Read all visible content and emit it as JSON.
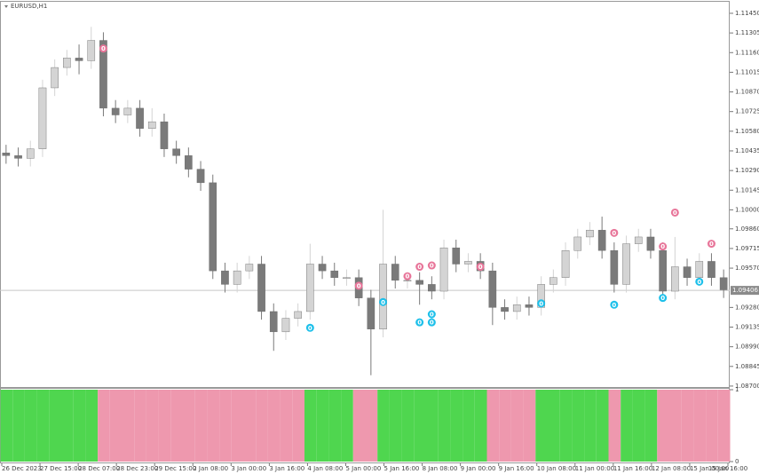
{
  "chart_data": {
    "type": "candlestick",
    "title": "EURUSD,H1",
    "candles": [
      [
        1.1042,
        1.1048,
        1.1034,
        1.104
      ],
      [
        1.104,
        1.1046,
        1.1032,
        1.1038
      ],
      [
        1.1038,
        1.1051,
        1.1032,
        1.1045
      ],
      [
        1.1045,
        1.1096,
        1.1039,
        1.109
      ],
      [
        1.109,
        1.1111,
        1.1084,
        1.1105
      ],
      [
        1.1105,
        1.1118,
        1.1099,
        1.1112
      ],
      [
        1.1112,
        1.1122,
        1.11,
        1.111
      ],
      [
        1.111,
        1.1135,
        1.1104,
        1.1125
      ],
      [
        1.1125,
        1.1131,
        1.1069,
        1.1075
      ],
      [
        1.1075,
        1.1081,
        1.1064,
        1.107
      ],
      [
        1.107,
        1.1081,
        1.1064,
        1.1075
      ],
      [
        1.1075,
        1.1081,
        1.1054,
        1.106
      ],
      [
        1.106,
        1.1075,
        1.1054,
        1.1065
      ],
      [
        1.1065,
        1.1071,
        1.1039,
        1.1045
      ],
      [
        1.1045,
        1.1051,
        1.1034,
        1.104
      ],
      [
        1.104,
        1.1046,
        1.1024,
        1.103
      ],
      [
        1.103,
        1.1036,
        1.1014,
        1.102
      ],
      [
        1.102,
        1.1026,
        1.0949,
        1.0955
      ],
      [
        1.0955,
        1.0961,
        1.0939,
        1.0945
      ],
      [
        1.0945,
        1.0961,
        1.0939,
        1.0955
      ],
      [
        1.0955,
        1.0966,
        1.0949,
        1.096
      ],
      [
        1.096,
        1.0966,
        1.0919,
        1.0925
      ],
      [
        1.0925,
        1.0931,
        1.0896,
        1.091
      ],
      [
        1.091,
        1.0926,
        1.0904,
        1.092
      ],
      [
        1.092,
        1.0931,
        1.0914,
        1.0925
      ],
      [
        1.0925,
        1.0975,
        1.0919,
        1.096
      ],
      [
        1.096,
        1.0966,
        1.0949,
        1.0955
      ],
      [
        1.0955,
        1.0961,
        1.0944,
        1.095
      ],
      [
        1.095,
        1.0956,
        1.0944,
        1.095
      ],
      [
        1.095,
        1.0956,
        1.0929,
        1.0935
      ],
      [
        1.0935,
        1.0941,
        1.0878,
        1.0912
      ],
      [
        1.0912,
        1.1,
        1.0906,
        1.096
      ],
      [
        1.096,
        1.0966,
        1.0942,
        1.0948
      ],
      [
        1.0948,
        1.0954,
        1.0942,
        1.0948
      ],
      [
        1.0948,
        1.0954,
        1.093,
        1.0945
      ],
      [
        1.0945,
        1.0951,
        1.0934,
        1.094
      ],
      [
        1.094,
        1.0978,
        1.0934,
        1.0972
      ],
      [
        1.0972,
        1.0978,
        1.0954,
        1.096
      ],
      [
        1.096,
        1.0968,
        1.0954,
        1.0962
      ],
      [
        1.0962,
        1.0968,
        1.0949,
        1.0955
      ],
      [
        1.0955,
        1.0961,
        1.0915,
        1.0928
      ],
      [
        1.0928,
        1.0934,
        1.0919,
        1.0925
      ],
      [
        1.0925,
        1.0936,
        1.0919,
        1.093
      ],
      [
        1.093,
        1.0936,
        1.0922,
        1.0928
      ],
      [
        1.0928,
        1.0951,
        1.0922,
        1.0945
      ],
      [
        1.0945,
        1.0956,
        1.0939,
        1.095
      ],
      [
        1.095,
        1.0976,
        1.0944,
        1.097
      ],
      [
        1.097,
        1.0986,
        1.0964,
        1.098
      ],
      [
        1.098,
        1.0991,
        1.0974,
        1.0985
      ],
      [
        1.0985,
        1.0995,
        1.0964,
        1.097
      ],
      [
        1.097,
        1.0976,
        1.0939,
        1.0945
      ],
      [
        1.0945,
        1.0981,
        1.0939,
        1.0975
      ],
      [
        1.0975,
        1.0986,
        1.0969,
        1.098
      ],
      [
        1.098,
        1.0986,
        1.0964,
        1.097
      ],
      [
        1.097,
        1.0976,
        1.0934,
        1.094
      ],
      [
        1.094,
        1.098,
        1.0934,
        1.0958
      ],
      [
        1.0958,
        1.0964,
        1.0944,
        1.095
      ],
      [
        1.095,
        1.0968,
        1.0944,
        1.0962
      ],
      [
        1.0962,
        1.0968,
        1.0944,
        1.095
      ],
      [
        1.095,
        1.0956,
        1.0935,
        1.0941
      ]
    ],
    "bull_color": "#d4d4d4",
    "bear_color": "#7a7a7a",
    "ylim": [
      1.08693,
      1.11535
    ],
    "yticks": [
      {
        "value": 1.1145,
        "label": "1.11450"
      },
      {
        "value": 1.11305,
        "label": "1.11305"
      },
      {
        "value": 1.1116,
        "label": "1.11160"
      },
      {
        "value": 1.11015,
        "label": "1.11015"
      },
      {
        "value": 1.1087,
        "label": "1.10870"
      },
      {
        "value": 1.10725,
        "label": "1.10725"
      },
      {
        "value": 1.1058,
        "label": "1.10580"
      },
      {
        "value": 1.10435,
        "label": "1.10435"
      },
      {
        "value": 1.1029,
        "label": "1.10290"
      },
      {
        "value": 1.10145,
        "label": "1.10145"
      },
      {
        "value": 1.1,
        "label": "1.10000"
      },
      {
        "value": 1.0986,
        "label": "1.09860"
      },
      {
        "value": 1.09715,
        "label": "1.09715"
      },
      {
        "value": 1.0957,
        "label": "1.09570"
      },
      {
        "value": 1.0928,
        "label": "1.09280"
      },
      {
        "value": 1.09135,
        "label": "1.09135"
      },
      {
        "value": 1.0899,
        "label": "1.08990"
      },
      {
        "value": 1.08845,
        "label": "1.08845"
      },
      {
        "value": 1.087,
        "label": "1.08700"
      }
    ],
    "current_price": 1.09406,
    "signals": [
      {
        "candle": 8,
        "price": 1.1119,
        "side": "sell",
        "label": "0"
      },
      {
        "candle": 29,
        "price": 1.0944,
        "side": "sell",
        "label": "0"
      },
      {
        "candle": 33,
        "price": 1.0951,
        "side": "sell",
        "label": "0"
      },
      {
        "candle": 34,
        "price": 1.0958,
        "side": "sell",
        "label": "0"
      },
      {
        "candle": 35,
        "price": 1.0959,
        "side": "sell",
        "label": "0"
      },
      {
        "candle": 39,
        "price": 1.0958,
        "side": "sell",
        "label": "0"
      },
      {
        "candle": 50,
        "price": 1.0983,
        "side": "sell",
        "label": "0"
      },
      {
        "candle": 54,
        "price": 1.0973,
        "side": "sell",
        "label": "0"
      },
      {
        "candle": 55,
        "price": 1.0998,
        "side": "sell",
        "label": "0"
      },
      {
        "candle": 58,
        "price": 1.0975,
        "side": "sell",
        "label": "0"
      },
      {
        "candle": 25,
        "price": 1.0913,
        "side": "buy",
        "label": "0"
      },
      {
        "candle": 31,
        "price": 1.0932,
        "side": "buy",
        "label": "0"
      },
      {
        "candle": 34,
        "price": 1.0917,
        "side": "buy",
        "label": "0"
      },
      {
        "candle": 35,
        "price": 1.0917,
        "side": "buy",
        "label": "0"
      },
      {
        "candle": 35,
        "price": 1.0923,
        "side": "buy",
        "label": "0"
      },
      {
        "candle": 44,
        "price": 1.0931,
        "side": "buy",
        "label": "0"
      },
      {
        "candle": 50,
        "price": 1.093,
        "side": "buy",
        "label": "0"
      },
      {
        "candle": 54,
        "price": 1.0935,
        "side": "buy",
        "label": "0"
      },
      {
        "candle": 57,
        "price": 1.0947,
        "side": "buy",
        "label": "0"
      }
    ],
    "sell_color": "#e8769a",
    "buy_color": "#1ec0ea",
    "indicator": [
      1,
      1,
      1,
      1,
      1,
      1,
      1,
      1,
      0,
      0,
      0,
      0,
      0,
      0,
      0,
      0,
      0,
      0,
      0,
      0,
      0,
      0,
      0,
      0,
      0,
      1,
      1,
      1,
      1,
      0,
      0,
      1,
      1,
      1,
      1,
      1,
      1,
      1,
      1,
      1,
      0,
      0,
      0,
      0,
      1,
      1,
      1,
      1,
      1,
      1,
      0,
      1,
      1,
      1,
      0,
      0,
      0,
      0,
      0,
      0
    ],
    "indicator_up_color": "#4fd64f",
    "indicator_down_color": "#ee98ae",
    "indicator_ylim": [
      0,
      1
    ],
    "indicator_yticks": [
      0,
      1
    ],
    "xticks": [
      "26 Dec 2023",
      "27 Dec 15:00",
      "28 Dec 07:00",
      "28 Dec 23:00",
      "29 Dec 15:00",
      "2 Jan 08:00",
      "3 Jan 00:00",
      "3 Jan 16:00",
      "4 Jan 08:00",
      "5 Jan 00:00",
      "5 Jan 16:00",
      "8 Jan 08:00",
      "9 Jan 00:00",
      "9 Jan 16:00",
      "10 Jan 08:00",
      "11 Jan 00:00",
      "11 Jan 16:00",
      "12 Jan 08:00",
      "15 Jan 00:00",
      "15 Jan 16:00"
    ]
  }
}
